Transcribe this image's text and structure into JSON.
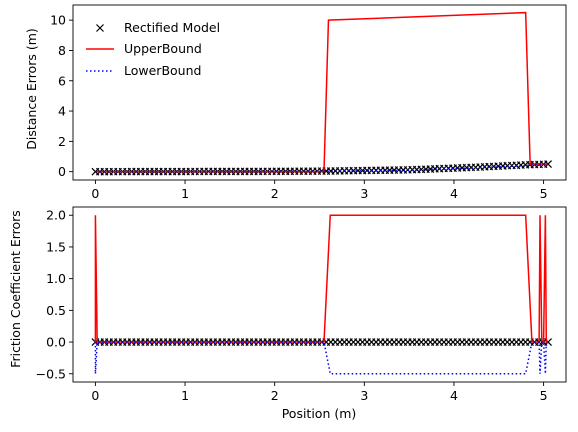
{
  "chart_data": [
    {
      "type": "line",
      "title": "",
      "xlabel": "",
      "ylabel": "Distance Errors (m)",
      "xlim": [
        -0.25,
        5.25
      ],
      "ylim": [
        -0.55,
        11.0
      ],
      "xticks": [
        0,
        1,
        2,
        3,
        4,
        5
      ],
      "yticks": [
        0,
        2,
        4,
        6,
        8,
        10
      ],
      "grid": false,
      "legend": {
        "position": "top-left",
        "frame": false
      },
      "series": [
        {
          "name": "Rectified Model",
          "style": "markers",
          "marker": "x",
          "color": "#000000",
          "x_start": 0,
          "x_end": 5.05,
          "count": 101,
          "y_profile": [
            [
              0,
              0.0
            ],
            [
              2.0,
              0.02
            ],
            [
              2.6,
              0.04
            ],
            [
              3.5,
              0.12
            ],
            [
              4.2,
              0.28
            ],
            [
              4.8,
              0.45
            ],
            [
              5.05,
              0.5
            ]
          ]
        },
        {
          "name": "UpperBound",
          "style": "solid",
          "color": "#ff0000",
          "x": [
            0,
            2.55,
            2.6,
            4.8,
            4.85,
            5.05
          ],
          "y": [
            0,
            0,
            10.0,
            10.5,
            0.5,
            0.5
          ]
        },
        {
          "name": "LowerBound",
          "style": "dotted",
          "color": "#0000ff",
          "x": [
            0,
            2.5,
            3.5,
            4.2,
            4.8,
            4.85,
            5.05
          ],
          "y": [
            0,
            0.02,
            0.1,
            0.25,
            0.4,
            0.45,
            0.5
          ]
        }
      ]
    },
    {
      "type": "line",
      "title": "",
      "xlabel": "Position (m)",
      "ylabel": "Friction Coefficient Errors",
      "xlim": [
        -0.25,
        5.25
      ],
      "ylim": [
        -0.63,
        2.13
      ],
      "xticks": [
        0,
        1,
        2,
        3,
        4,
        5
      ],
      "yticks": [
        -0.5,
        0.0,
        0.5,
        1.0,
        1.5,
        2.0
      ],
      "grid": false,
      "series": [
        {
          "name": "Rectified Model",
          "style": "markers",
          "marker": "x",
          "color": "#000000",
          "x_start": 0,
          "x_end": 5.05,
          "count": 101,
          "y_profile": [
            [
              0,
              0.0
            ],
            [
              5.05,
              0.0
            ]
          ]
        },
        {
          "name": "UpperBound",
          "style": "solid",
          "color": "#ff0000",
          "x": [
            0,
            0.0,
            0.02,
            2.55,
            2.62,
            4.8,
            4.87,
            4.95,
            4.96,
            4.98,
            5.0,
            5.02,
            5.03,
            5.05
          ],
          "y": [
            0,
            2.0,
            0,
            0,
            2.0,
            2.0,
            0,
            0,
            2.0,
            0,
            0,
            2.0,
            0,
            0
          ]
        },
        {
          "name": "LowerBound",
          "style": "dotted",
          "color": "#0000ff",
          "x": [
            0,
            0.0,
            0.02,
            2.55,
            2.62,
            4.8,
            4.87,
            4.95,
            4.96,
            4.98,
            5.0,
            5.02,
            5.03,
            5.05
          ],
          "y": [
            0,
            -0.5,
            0,
            0,
            -0.5,
            -0.5,
            0,
            0,
            -0.5,
            0,
            0,
            -0.5,
            0,
            0
          ]
        }
      ]
    }
  ]
}
